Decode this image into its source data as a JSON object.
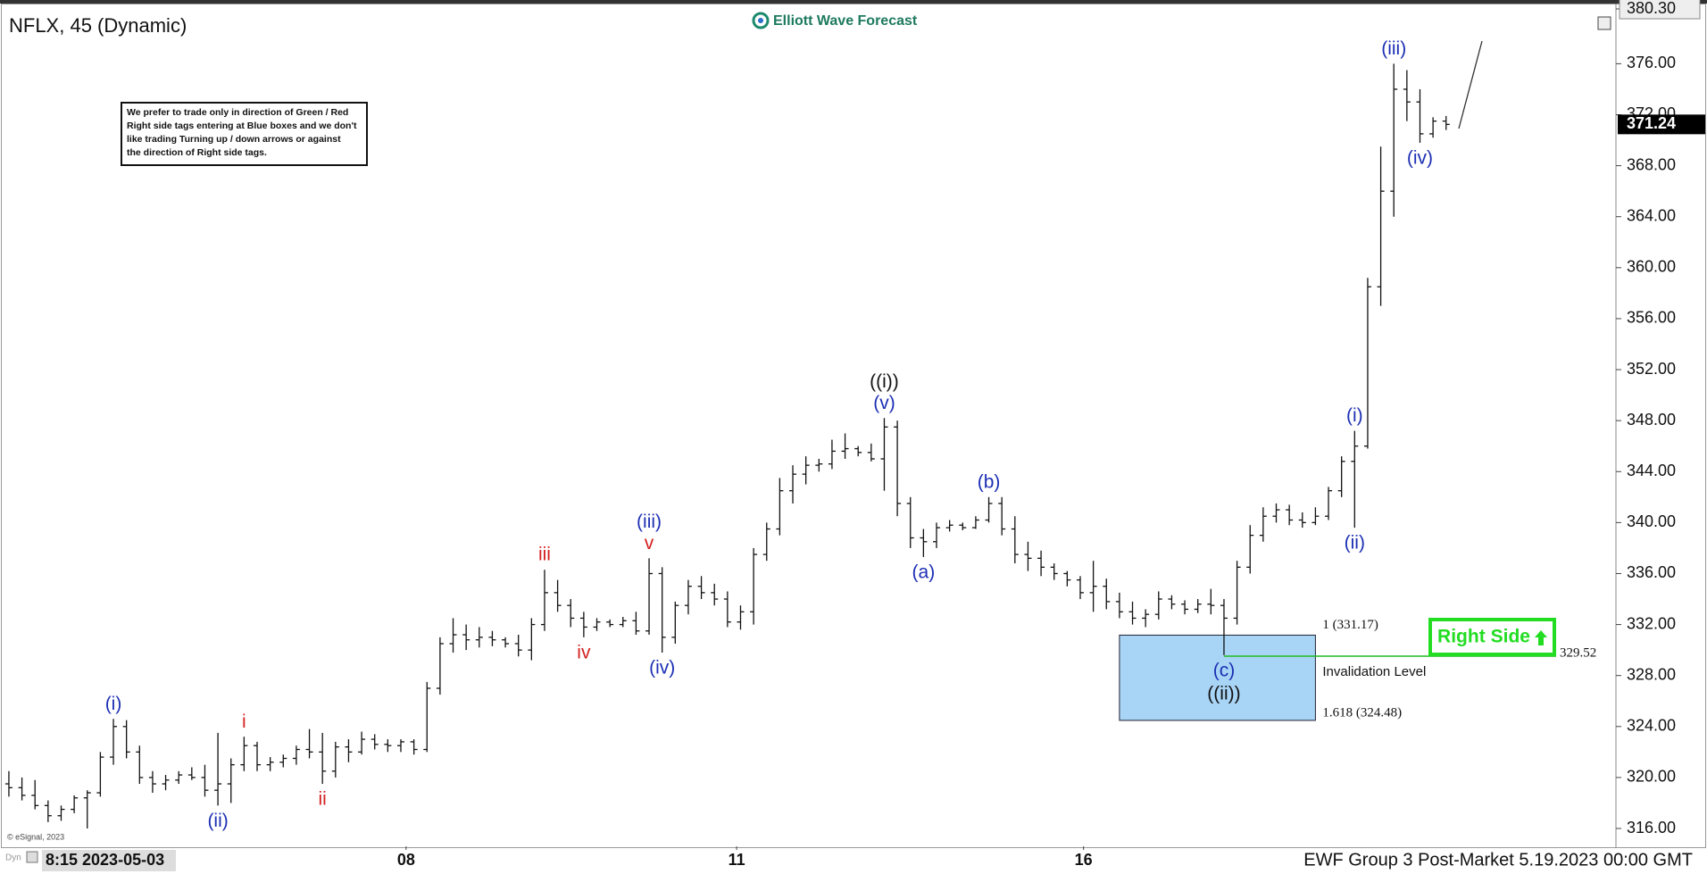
{
  "header": {
    "title": "NFLX, 45 (Dynamic)",
    "logo": "Elliott Wave Forecast",
    "note": [
      "We prefer to trade only in direction of Green / Red",
      "Right side tags entering at Blue boxes and we don't",
      "like trading Turning up / down arrows or against",
      "the direction of Right side tags."
    ],
    "copyright": "© eSignal, 2023"
  },
  "footer": {
    "mode": "Dyn",
    "start": "8:15 2023-05-03",
    "caption": "EWF Group 3 Post-Market 5.19.2023 00:00 GMT"
  },
  "chart_data": {
    "type": "ohlc",
    "ohlc": [
      [
        319.5,
        320.5,
        318.5,
        319.2
      ],
      [
        319.2,
        320.0,
        318.2,
        318.6
      ],
      [
        318.6,
        319.8,
        317.5,
        317.8
      ],
      [
        317.8,
        318.2,
        316.5,
        317.0
      ],
      [
        317.0,
        317.8,
        316.6,
        317.5
      ],
      [
        317.5,
        318.6,
        317.2,
        318.4
      ],
      [
        318.4,
        319.0,
        316.0,
        318.8
      ],
      [
        318.8,
        322.0,
        318.5,
        321.6
      ],
      [
        321.6,
        324.6,
        321.0,
        324.0
      ],
      [
        324.0,
        324.5,
        321.5,
        322.0
      ],
      [
        322.0,
        322.5,
        319.5,
        320.0
      ],
      [
        320.0,
        320.5,
        318.8,
        319.5
      ],
      [
        319.5,
        320.2,
        319.0,
        319.8
      ],
      [
        319.8,
        320.5,
        319.5,
        320.2
      ],
      [
        320.2,
        320.8,
        319.8,
        320.0
      ],
      [
        320.0,
        321.0,
        318.5,
        319.0
      ],
      [
        319.0,
        323.5,
        317.8,
        319.5
      ],
      [
        319.5,
        321.5,
        318.0,
        321.0
      ],
      [
        321.0,
        323.2,
        320.5,
        322.5
      ],
      [
        322.5,
        322.8,
        320.5,
        321.0
      ],
      [
        321.0,
        321.6,
        320.5,
        321.2
      ],
      [
        321.2,
        321.8,
        320.8,
        321.5
      ],
      [
        321.5,
        322.5,
        321.0,
        322.2
      ],
      [
        322.2,
        323.8,
        321.5,
        322.0
      ],
      [
        322.0,
        323.5,
        319.5,
        320.5
      ],
      [
        320.5,
        322.8,
        320.0,
        322.4
      ],
      [
        322.4,
        323.0,
        321.2,
        322.0
      ],
      [
        322.0,
        323.6,
        321.8,
        323.0
      ],
      [
        323.0,
        323.4,
        322.2,
        322.6
      ],
      [
        322.6,
        323.0,
        322.0,
        322.5
      ],
      [
        322.5,
        323.0,
        322.0,
        322.8
      ],
      [
        322.8,
        323.0,
        321.8,
        322.2
      ],
      [
        322.2,
        327.5,
        322.0,
        327.0
      ],
      [
        327.0,
        331.0,
        326.5,
        330.5
      ],
      [
        330.5,
        332.5,
        329.8,
        331.2
      ],
      [
        331.2,
        332.0,
        330.0,
        330.8
      ],
      [
        330.8,
        331.8,
        330.2,
        331.0
      ],
      [
        331.0,
        331.5,
        330.3,
        330.8
      ],
      [
        330.8,
        331.0,
        330.2,
        330.5
      ],
      [
        330.5,
        331.2,
        329.5,
        330.0
      ],
      [
        330.0,
        332.5,
        329.2,
        332.0
      ],
      [
        332.0,
        336.3,
        331.5,
        334.5
      ],
      [
        334.5,
        335.5,
        333.0,
        333.5
      ],
      [
        333.5,
        334.0,
        331.8,
        332.5
      ],
      [
        332.5,
        333.0,
        331.0,
        331.8
      ],
      [
        331.8,
        332.5,
        331.5,
        332.2
      ],
      [
        332.2,
        332.4,
        331.8,
        332.0
      ],
      [
        332.0,
        332.6,
        331.8,
        332.3
      ],
      [
        332.3,
        333.0,
        331.2,
        331.5
      ],
      [
        331.5,
        337.2,
        331.2,
        336.0
      ],
      [
        336.0,
        336.5,
        329.8,
        331.0
      ],
      [
        331.0,
        333.8,
        330.5,
        333.5
      ],
      [
        333.5,
        335.5,
        332.8,
        335.0
      ],
      [
        335.0,
        335.8,
        334.0,
        334.5
      ],
      [
        334.5,
        335.2,
        333.5,
        334.0
      ],
      [
        334.0,
        334.6,
        331.8,
        332.2
      ],
      [
        332.2,
        333.5,
        331.6,
        333.0
      ],
      [
        333.0,
        338.0,
        332.0,
        337.5
      ],
      [
        337.5,
        340.0,
        337.0,
        339.5
      ],
      [
        339.5,
        343.5,
        339.0,
        342.5
      ],
      [
        342.5,
        344.5,
        341.5,
        343.8
      ],
      [
        343.8,
        345.2,
        343.0,
        344.5
      ],
      [
        344.5,
        345.0,
        344.0,
        344.6
      ],
      [
        344.6,
        346.5,
        344.2,
        345.6
      ],
      [
        345.6,
        347.0,
        345.0,
        345.8
      ],
      [
        345.8,
        346.0,
        345.2,
        345.5
      ],
      [
        345.5,
        346.2,
        344.8,
        345.0
      ],
      [
        345.0,
        348.2,
        342.5,
        347.5
      ],
      [
        347.5,
        348.0,
        340.5,
        341.5
      ],
      [
        341.5,
        342.0,
        338.0,
        338.8
      ],
      [
        338.8,
        339.5,
        337.3,
        338.5
      ],
      [
        338.5,
        340.0,
        338.0,
        339.6
      ],
      [
        339.6,
        340.2,
        339.3,
        339.8
      ],
      [
        339.8,
        340.0,
        339.4,
        339.6
      ],
      [
        339.6,
        340.5,
        339.5,
        340.2
      ],
      [
        340.2,
        342.0,
        340.0,
        341.5
      ],
      [
        341.5,
        342.0,
        339.0,
        339.5
      ],
      [
        339.5,
        340.5,
        336.8,
        337.5
      ],
      [
        337.5,
        338.5,
        336.2,
        337.2
      ],
      [
        337.2,
        337.8,
        335.8,
        336.5
      ],
      [
        336.5,
        336.8,
        335.5,
        336.0
      ],
      [
        336.0,
        336.2,
        335.0,
        335.5
      ],
      [
        335.5,
        335.8,
        334.0,
        334.5
      ],
      [
        334.5,
        337.0,
        333.0,
        335.0
      ],
      [
        335.0,
        335.6,
        333.2,
        333.8
      ],
      [
        333.8,
        334.5,
        332.5,
        333.0
      ],
      [
        333.0,
        333.8,
        332.0,
        332.5
      ],
      [
        332.5,
        333.2,
        331.8,
        332.8
      ],
      [
        332.8,
        334.6,
        332.4,
        334.0
      ],
      [
        334.0,
        334.3,
        333.2,
        333.6
      ],
      [
        333.6,
        333.9,
        332.8,
        333.2
      ],
      [
        333.2,
        334.0,
        332.9,
        333.6
      ],
      [
        333.6,
        334.8,
        332.8,
        333.5
      ],
      [
        333.5,
        334.0,
        329.6,
        332.5
      ],
      [
        332.5,
        337.0,
        332.0,
        336.5
      ],
      [
        336.5,
        339.8,
        336.0,
        339.0
      ],
      [
        339.0,
        341.2,
        338.5,
        340.5
      ],
      [
        340.5,
        341.5,
        340.0,
        341.0
      ],
      [
        341.0,
        341.4,
        339.8,
        340.2
      ],
      [
        340.2,
        340.8,
        339.6,
        340.0
      ],
      [
        340.0,
        341.2,
        339.8,
        340.5
      ],
      [
        340.5,
        342.8,
        340.2,
        342.5
      ],
      [
        342.5,
        345.2,
        342.0,
        344.8
      ],
      [
        344.8,
        347.2,
        339.6,
        346.0
      ],
      [
        346.0,
        359.2,
        345.8,
        358.5
      ],
      [
        358.5,
        369.5,
        357.0,
        366.0
      ],
      [
        366.0,
        376.0,
        364.0,
        374.0
      ],
      [
        374.0,
        375.5,
        371.5,
        373.0
      ],
      [
        373.0,
        374.0,
        369.8,
        370.5
      ],
      [
        370.5,
        371.8,
        370.2,
        371.5
      ],
      [
        371.5,
        371.9,
        370.8,
        371.24
      ]
    ],
    "xlim": [
      -0.68,
      123
    ],
    "xticks": [
      {
        "value": 30.4,
        "label": "08"
      },
      {
        "value": 55.7,
        "label": "11"
      },
      {
        "value": 82.25,
        "label": "16"
      }
    ],
    "ylim": [
      314.6,
      380.3
    ],
    "yticks": [
      {
        "value": 316,
        "label": "316.00"
      },
      {
        "value": 320,
        "label": "320.00"
      },
      {
        "value": 324,
        "label": "324.00"
      },
      {
        "value": 328,
        "label": "328.00"
      },
      {
        "value": 332,
        "label": "332.00"
      },
      {
        "value": 336,
        "label": "336.00"
      },
      {
        "value": 340,
        "label": "340.00"
      },
      {
        "value": 344,
        "label": "344.00"
      },
      {
        "value": 348,
        "label": "348.00"
      },
      {
        "value": 352,
        "label": "352.00"
      },
      {
        "value": 356,
        "label": "356.00"
      },
      {
        "value": 360,
        "label": "360.00"
      },
      {
        "value": 364,
        "label": "364.00"
      },
      {
        "value": 368,
        "label": "368.00"
      },
      {
        "value": 372,
        "label": "372.00"
      },
      {
        "value": 376,
        "label": "376.00"
      },
      {
        "value": 380.3,
        "label": "380.30"
      }
    ],
    "last_price": {
      "value": 371.24,
      "label": "371.24"
    },
    "annotations": [
      {
        "text": "(i)",
        "bar": 8,
        "side": "above",
        "color": "#1c2fb4"
      },
      {
        "text": "(ii)",
        "bar": 16,
        "side": "below",
        "color": "#1c2fb4"
      },
      {
        "text": "i",
        "bar": 18,
        "side": "above",
        "color": "#d42020"
      },
      {
        "text": "ii",
        "bar": 24,
        "side": "below",
        "color": "#d42020"
      },
      {
        "text": "iii",
        "bar": 41,
        "side": "above",
        "color": "#d42020"
      },
      {
        "text": "iv",
        "bar": 44,
        "side": "below",
        "color": "#d42020"
      },
      {
        "text": "v",
        "bar": 49,
        "side": "above",
        "color": "#d42020"
      },
      {
        "text": "(iii)",
        "bar": 49,
        "side": "above",
        "color": "#1c2fb4"
      },
      {
        "text": "(iv)",
        "bar": 50,
        "side": "below",
        "color": "#1c2fb4"
      },
      {
        "text": "(v)",
        "bar": 67,
        "side": "above",
        "color": "#1c2fb4"
      },
      {
        "text": "((i))",
        "bar": 67,
        "side": "above",
        "color": "#111111"
      },
      {
        "text": "(a)",
        "bar": 70,
        "side": "below",
        "color": "#1c2fb4"
      },
      {
        "text": "(b)",
        "bar": 75,
        "side": "above",
        "color": "#1c2fb4"
      },
      {
        "text": "(c)",
        "bar": 93,
        "side": "below",
        "color": "#1c2fb4"
      },
      {
        "text": "((ii))",
        "bar": 93,
        "side": "below",
        "color": "#111111"
      },
      {
        "text": "(i)",
        "bar": 103,
        "side": "above",
        "color": "#1c2fb4"
      },
      {
        "text": "(ii)",
        "bar": 103,
        "side": "below",
        "color": "#1c2fb4"
      },
      {
        "text": "(iii)",
        "bar": 106,
        "side": "above",
        "color": "#1c2fb4"
      },
      {
        "text": "(iv)",
        "bar": 108,
        "side": "below",
        "color": "#1c2fb4"
      }
    ],
    "zone": {
      "top": 331.17,
      "bottom": 324.48,
      "from_bar": 85,
      "to_bar": 100,
      "top_label": "1 (331.17)",
      "bottom_label": "1.618 (324.48)",
      "color": "#a8d4f5"
    },
    "invalidation": {
      "value": 329.52,
      "label": "329.52",
      "text": "Invalidation Level",
      "from_bar": 93,
      "color": "#22bb22"
    },
    "tag": {
      "text": "Right Side",
      "color": "#22dd22"
    }
  }
}
